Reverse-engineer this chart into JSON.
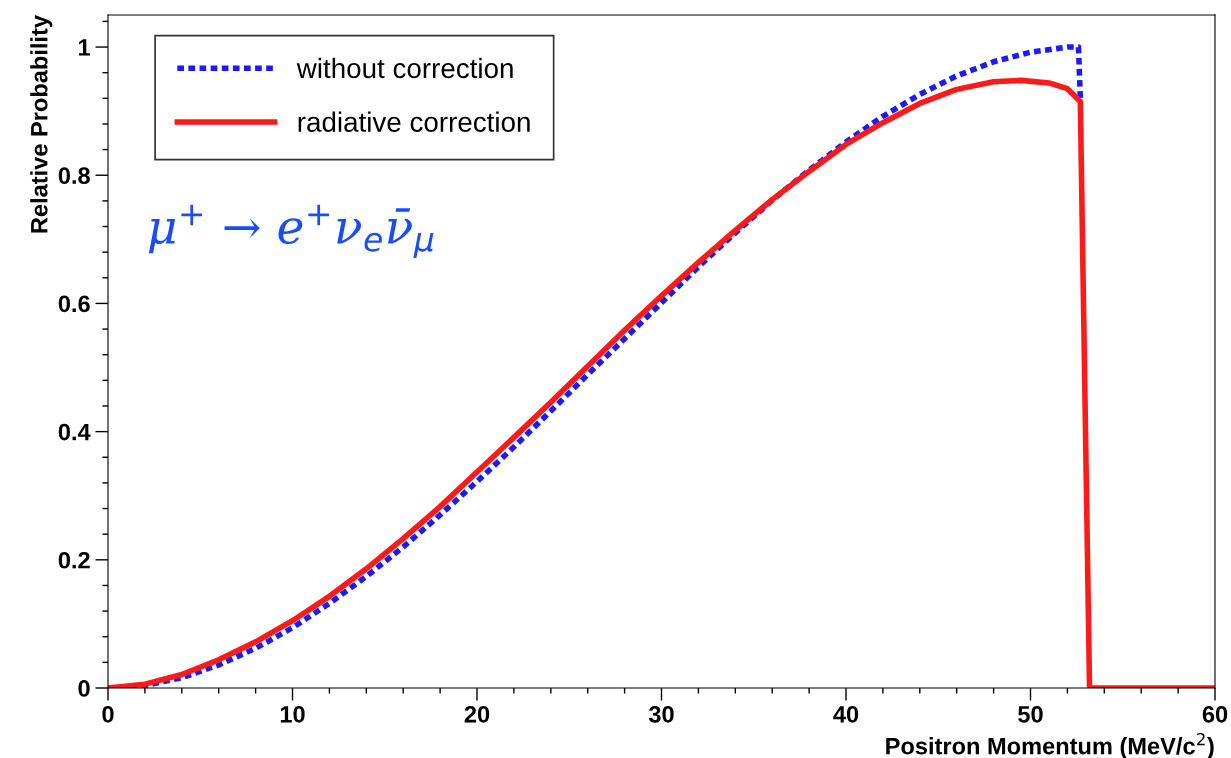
{
  "chart_data": {
    "type": "line",
    "xlabel": "Positron Momentum (MeV/c$^{2}$)",
    "ylabel": "Relative Probability",
    "annotations": [
      "μ$^{+}$ → e$^{+}$ν$_{e}$ν̄$_{μ}$"
    ],
    "xlim": [
      0,
      60
    ],
    "xticks": [
      0,
      10,
      20,
      30,
      40,
      50,
      60
    ],
    "ylim": [
      0,
      1.05
    ],
    "yticks": [
      0,
      0.2,
      0.4,
      0.6,
      0.8,
      1
    ],
    "grid": false,
    "legend": "top left",
    "marker": "none",
    "series": [
      {
        "name": "without correction",
        "color": "#1a1aff",
        "line_style": "dotted",
        "x": [
          0,
          2,
          4,
          6,
          8,
          10,
          12,
          14,
          16,
          18,
          20,
          22,
          24,
          26,
          28,
          30,
          32,
          34,
          36,
          38,
          40,
          42,
          44,
          46,
          48,
          50,
          52,
          52.6,
          52.7
        ],
        "values": [
          0,
          0.004,
          0.016,
          0.036,
          0.062,
          0.094,
          0.132,
          0.174,
          0.22,
          0.27,
          0.322,
          0.376,
          0.432,
          0.489,
          0.545,
          0.601,
          0.657,
          0.71,
          0.761,
          0.808,
          0.852,
          0.892,
          0.926,
          0.955,
          0.977,
          0.992,
          1.0,
          1.0,
          0.92
        ]
      },
      {
        "name": "radiative correction",
        "color": "#ff1a1a",
        "line_style": "solid",
        "x": [
          0,
          2,
          4,
          6,
          8,
          10,
          12,
          14,
          16,
          18,
          20,
          22,
          24,
          26,
          28,
          30,
          32,
          34,
          36,
          38,
          40,
          42,
          44,
          46,
          48,
          49.5,
          51,
          52,
          52.7,
          53.2,
          60
        ],
        "values": [
          0,
          0.006,
          0.021,
          0.044,
          0.072,
          0.105,
          0.143,
          0.186,
          0.233,
          0.283,
          0.337,
          0.391,
          0.446,
          0.502,
          0.558,
          0.612,
          0.664,
          0.714,
          0.762,
          0.806,
          0.848,
          0.882,
          0.912,
          0.934,
          0.946,
          0.948,
          0.944,
          0.935,
          0.915,
          0,
          0
        ]
      }
    ]
  }
}
